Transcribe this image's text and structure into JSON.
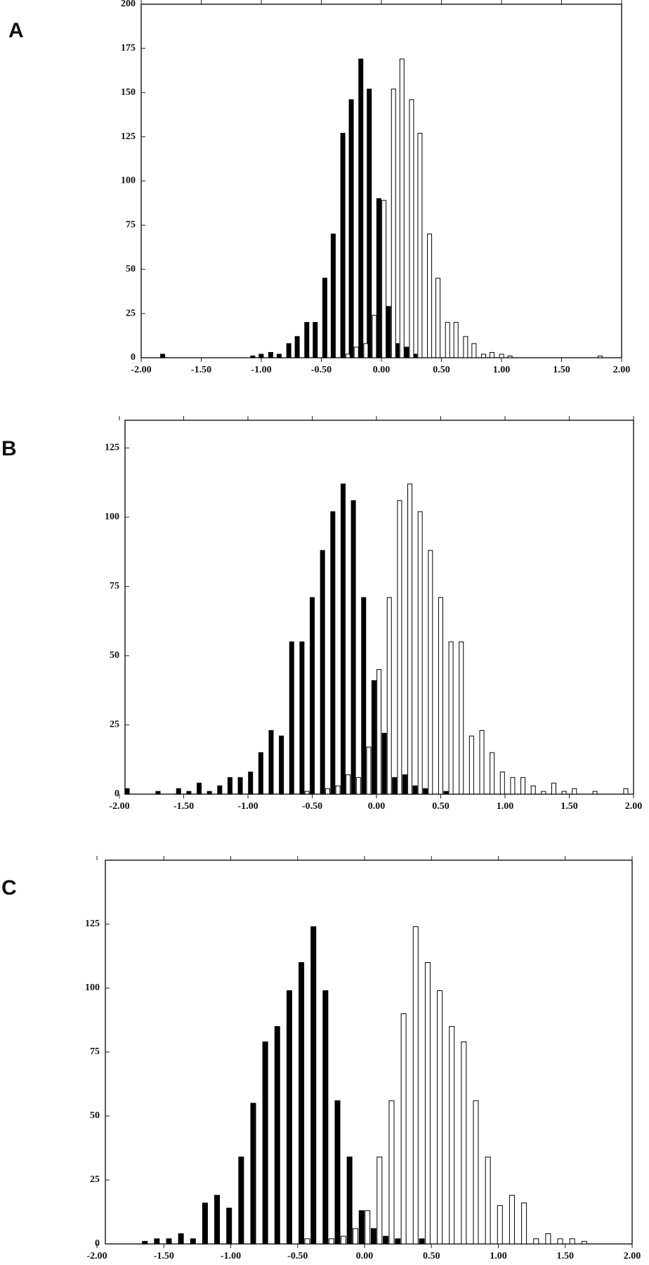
{
  "chart_data": [
    {
      "type": "bar",
      "label": "A",
      "xlim": [
        -2,
        2
      ],
      "ylim": [
        0,
        200
      ],
      "xticks": [
        {
          "value": -2,
          "label": "-2.00"
        },
        {
          "value": -1.5,
          "label": "-1.50"
        },
        {
          "value": -1,
          "label": "-1.00"
        },
        {
          "value": -0.5,
          "label": "-0.50"
        },
        {
          "value": 0,
          "label": "0.00"
        },
        {
          "value": 0.5,
          "label": "0.50"
        },
        {
          "value": 1,
          "label": "1.00"
        },
        {
          "value": 1.5,
          "label": "1.50"
        },
        {
          "value": 2,
          "label": "2.00"
        }
      ],
      "yticks": [
        0,
        25,
        50,
        75,
        100,
        125,
        150,
        175,
        200
      ],
      "series": [
        {
          "color": "#000000",
          "x": [
            -1.8,
            -1.05,
            -0.98,
            -0.9,
            -0.83,
            -0.75,
            -0.68,
            -0.6,
            -0.53,
            -0.45,
            -0.38,
            -0.3,
            -0.23,
            -0.15,
            -0.08,
            0,
            0.08,
            0.15,
            0.23,
            0.3
          ],
          "values": [
            2,
            1,
            2,
            3,
            2,
            8,
            12,
            20,
            20,
            45,
            70,
            127,
            146,
            169,
            152,
            90,
            29,
            8,
            6,
            2
          ]
        },
        {
          "color": "#ffffff",
          "x": [
            -0.3,
            -0.23,
            -0.15,
            -0.08,
            0,
            0.08,
            0.15,
            0.23,
            0.3,
            0.38,
            0.45,
            0.53,
            0.6,
            0.68,
            0.75,
            0.83,
            0.9,
            0.98,
            1.05,
            1.8
          ],
          "values": [
            2,
            6,
            8,
            24,
            89,
            152,
            169,
            146,
            127,
            70,
            45,
            20,
            20,
            12,
            8,
            2,
            3,
            2,
            1,
            1
          ]
        }
      ]
    },
    {
      "type": "bar",
      "label": "B",
      "xlim": [
        -2,
        2
      ],
      "ylim": [
        0,
        135
      ],
      "xticks": [
        {
          "value": -2,
          "label": "-2.00"
        },
        {
          "value": -1.5,
          "label": "-1.50"
        },
        {
          "value": -1,
          "label": "-1.00"
        },
        {
          "value": -0.5,
          "label": "-0.50"
        },
        {
          "value": 0,
          "label": "0.00"
        },
        {
          "value": 0.5,
          "label": "0.50"
        },
        {
          "value": 1,
          "label": "1.00"
        },
        {
          "value": 1.5,
          "label": "1.50"
        },
        {
          "value": 2,
          "label": "2.00"
        }
      ],
      "yticks": [
        0,
        25,
        50,
        75,
        100,
        125
      ],
      "series": [
        {
          "color": "#000000",
          "x": [
            -1.92,
            -1.68,
            -1.52,
            -1.44,
            -1.36,
            -1.28,
            -1.2,
            -1.12,
            -1.04,
            -0.96,
            -0.88,
            -0.8,
            -0.72,
            -0.64,
            -0.56,
            -0.48,
            -0.4,
            -0.32,
            -0.24,
            -0.16,
            -0.08,
            0,
            0.08,
            0.16,
            0.24,
            0.32,
            0.4,
            0.56
          ],
          "values": [
            2,
            1,
            2,
            1,
            4,
            1,
            3,
            6,
            6,
            8,
            15,
            23,
            21,
            55,
            55,
            71,
            88,
            102,
            112,
            106,
            71,
            41,
            22,
            6,
            7,
            3,
            2,
            1
          ]
        },
        {
          "color": "#ffffff",
          "x": [
            -0.56,
            -0.4,
            -0.32,
            -0.24,
            -0.16,
            -0.08,
            0,
            0.08,
            0.16,
            0.24,
            0.32,
            0.4,
            0.48,
            0.56,
            0.64,
            0.72,
            0.8,
            0.88,
            0.96,
            1.04,
            1.12,
            1.2,
            1.28,
            1.36,
            1.44,
            1.52,
            1.68,
            1.92
          ],
          "values": [
            1,
            2,
            3,
            7,
            6,
            17,
            45,
            71,
            106,
            112,
            102,
            88,
            71,
            55,
            55,
            21,
            23,
            15,
            8,
            6,
            6,
            3,
            1,
            4,
            1,
            2,
            1,
            2
          ]
        }
      ]
    },
    {
      "type": "bar",
      "label": "C",
      "xlim": [
        -2,
        2
      ],
      "ylim": [
        0,
        150
      ],
      "xticks": [
        {
          "value": -2,
          "label": "-2.00"
        },
        {
          "value": -1.5,
          "label": "-1.50"
        },
        {
          "value": -1,
          "label": "-1.00"
        },
        {
          "value": -0.5,
          "label": "-0.50"
        },
        {
          "value": 0,
          "label": "0.00"
        },
        {
          "value": 0.5,
          "label": "0.50"
        },
        {
          "value": 1,
          "label": "1.00"
        },
        {
          "value": 1.5,
          "label": "1.50"
        },
        {
          "value": 2,
          "label": "2.00"
        }
      ],
      "yticks": [
        0,
        25,
        50,
        75,
        100,
        125
      ],
      "series": [
        {
          "color": "#000000",
          "x": [
            -1.62,
            -1.53,
            -1.44,
            -1.35,
            -1.26,
            -1.17,
            -1.08,
            -0.99,
            -0.9,
            -0.81,
            -0.72,
            -0.63,
            -0.54,
            -0.45,
            -0.36,
            -0.27,
            -0.18,
            -0.09,
            0,
            0.09,
            0.18,
            0.27,
            0.45
          ],
          "values": [
            1,
            2,
            2,
            4,
            2,
            16,
            19,
            14,
            34,
            55,
            79,
            85,
            99,
            110,
            124,
            99,
            56,
            34,
            13,
            6,
            3,
            2,
            2
          ]
        },
        {
          "color": "#ffffff",
          "x": [
            -0.45,
            -0.27,
            -0.18,
            -0.09,
            0,
            0.09,
            0.18,
            0.27,
            0.36,
            0.45,
            0.54,
            0.63,
            0.72,
            0.81,
            0.9,
            0.99,
            1.08,
            1.17,
            1.26,
            1.35,
            1.44,
            1.53,
            1.62
          ],
          "values": [
            2,
            2,
            3,
            6,
            13,
            34,
            56,
            90,
            124,
            110,
            99,
            85,
            79,
            56,
            34,
            15,
            19,
            16,
            2,
            4,
            2,
            2,
            1
          ]
        }
      ]
    }
  ]
}
